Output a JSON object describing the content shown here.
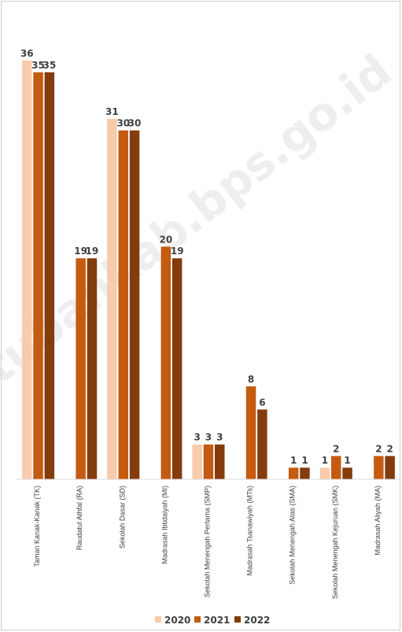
{
  "watermark": "tubankab.bps.go.id",
  "chart_data": {
    "type": "bar",
    "title": "",
    "xlabel": "",
    "ylabel": "",
    "ylim": [
      0,
      36
    ],
    "grid": false,
    "legend_position": "bottom",
    "categories": [
      "Taman Kanak-Kanak (TK)",
      "Raudatul Athfal (RA)",
      "Sekolah Dasar (SD)",
      "Madrasah Ibtidaiyah (MI)",
      "Sekolah Menengah Pertama (SMP)",
      "Madrasah Tsanawiyah (MTs)",
      "Sekolah Menengah Atas (SMA)",
      "Sekolah Menengah Kejuruan (SMK)",
      "Madrasah Aliyah (MA)"
    ],
    "series": [
      {
        "name": "2020",
        "color": "#f8cbad",
        "values": [
          36,
          null,
          31,
          null,
          3,
          null,
          null,
          1,
          null
        ]
      },
      {
        "name": "2021",
        "color": "#c55a11",
        "values": [
          35,
          19,
          30,
          20,
          3,
          8,
          1,
          2,
          2
        ]
      },
      {
        "name": "2022",
        "color": "#843c0c",
        "values": [
          35,
          19,
          30,
          19,
          3,
          6,
          1,
          1,
          2
        ]
      }
    ]
  }
}
